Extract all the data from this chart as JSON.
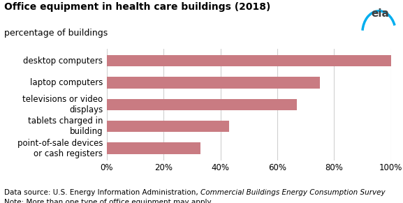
{
  "title": "Office equipment in health care buildings (2018)",
  "subtitle": "percentage of buildings",
  "categories": [
    "point-of-sale devices\nor cash registers",
    "tablets charged in\nbuilding",
    "televisions or video\ndisplays",
    "laptop computers",
    "desktop computers"
  ],
  "values": [
    33,
    43,
    67,
    75,
    100
  ],
  "bar_color": "#c97b82",
  "xlim": [
    0,
    100
  ],
  "xticks": [
    0,
    20,
    40,
    60,
    80,
    100
  ],
  "footer_line1_normal": "Data source: U.S. Energy Information Administration, ",
  "footer_line1_italic": "Commercial Buildings Energy Consumption Survey",
  "footer_line2": "Note: More than one type of office equipment may apply.",
  "title_fontsize": 10,
  "subtitle_fontsize": 9,
  "tick_fontsize": 8.5,
  "footer_fontsize": 7.5,
  "bar_height": 0.52,
  "background_color": "#ffffff",
  "grid_color": "#d0d0d0",
  "eia_text_color": "#404040",
  "eia_arc_color": "#00aeef"
}
